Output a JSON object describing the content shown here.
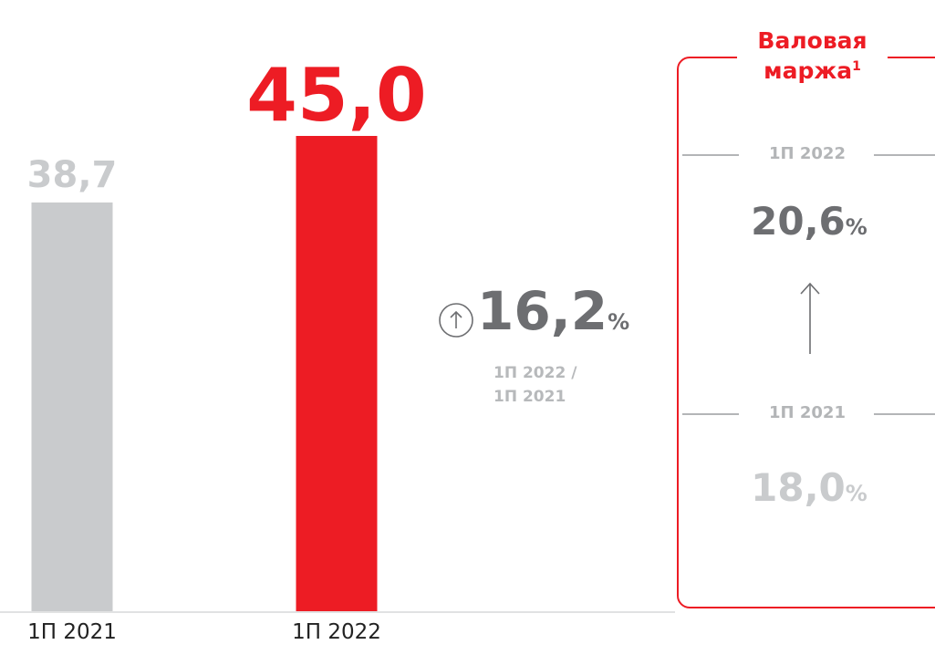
{
  "chart_data": {
    "type": "bar",
    "categories": [
      "1П 2021",
      "1П 2022"
    ],
    "values": [
      38.7,
      45.0
    ],
    "value_labels": [
      "38,7",
      "45,0"
    ],
    "bar_colors": [
      "#c9cbcd",
      "#ed1c24"
    ],
    "title": "",
    "xlabel": "",
    "ylabel": "",
    "ylim": [
      0,
      45.0
    ],
    "grid": false,
    "legend": "none"
  },
  "growth": {
    "value": "16,2",
    "unit": "%",
    "line1": "1П 2022 /",
    "line2": "1П 2021",
    "icon": "arrow-up-circle-icon"
  },
  "margin": {
    "title": "Валовая маржа",
    "footnote": "1",
    "period_top": "1П 2022",
    "value_top": "20,6",
    "period_bottom": "1П 2021",
    "value_bottom": "18,0",
    "unit": "%",
    "arrow_icon": "arrow-up-icon"
  },
  "colors": {
    "accent": "#ed1c24",
    "light_gray": "#c9cbcd",
    "dark_gray": "#6d6e71",
    "label_gray": "#b3b5b7"
  }
}
